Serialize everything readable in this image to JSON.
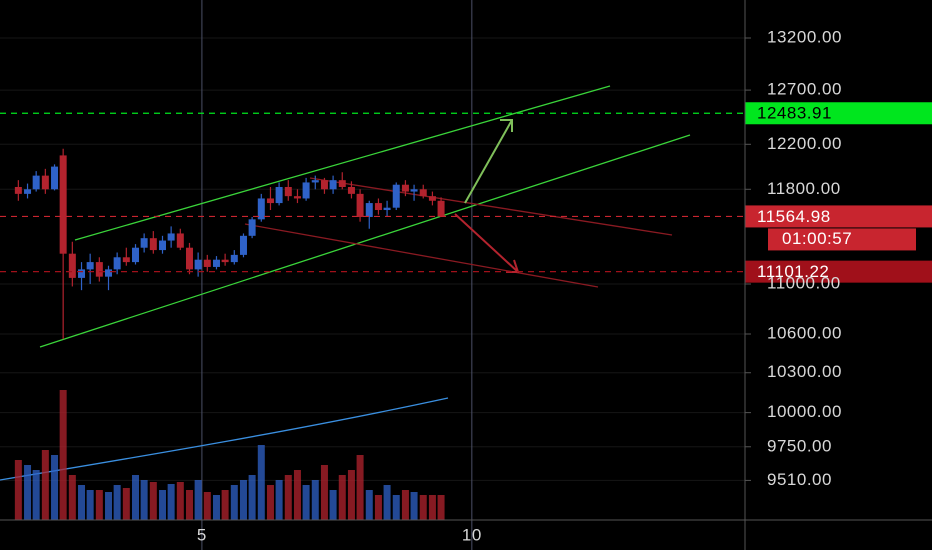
{
  "chart_data": {
    "type": "candlestick",
    "x": [
      1.6,
      1.77,
      1.93,
      2.1,
      2.27,
      2.43,
      2.6,
      2.77,
      2.93,
      3.1,
      3.27,
      3.43,
      3.6,
      3.77,
      3.93,
      4.1,
      4.27,
      4.43,
      4.6,
      4.77,
      4.93,
      5.1,
      5.27,
      5.43,
      5.6,
      5.77,
      5.93,
      6.1,
      6.27,
      6.43,
      6.6,
      6.77,
      6.93,
      7.1,
      7.27,
      7.43,
      7.6,
      7.77,
      7.93,
      8.1,
      8.27,
      8.43,
      8.6,
      8.77,
      8.93,
      9.1,
      9.27,
      9.43
    ],
    "open": [
      11820,
      11760,
      11800,
      11920,
      11800,
      12100,
      11250,
      11050,
      11120,
      11180,
      11060,
      11120,
      11220,
      11180,
      11300,
      11380,
      11280,
      11360,
      11420,
      11300,
      11120,
      11200,
      11140,
      11200,
      11180,
      11240,
      11400,
      11540,
      11720,
      11680,
      11820,
      11740,
      11720,
      11860,
      11880,
      11800,
      11880,
      11820,
      11760,
      11560,
      11680,
      11620,
      11640,
      11840,
      11780,
      11800,
      11740,
      11700
    ],
    "high": [
      11880,
      11850,
      11960,
      11980,
      12020,
      12160,
      11350,
      11180,
      11250,
      11220,
      11150,
      11260,
      11300,
      11330,
      11420,
      11440,
      11400,
      11480,
      11460,
      11340,
      11260,
      11240,
      11230,
      11250,
      11280,
      11420,
      11560,
      11760,
      11820,
      11860,
      11880,
      11800,
      11900,
      11920,
      11900,
      11920,
      11950,
      11870,
      11800,
      11700,
      11720,
      11700,
      11860,
      11880,
      11840,
      11840,
      11780,
      11730
    ],
    "low": [
      11700,
      11720,
      11780,
      11760,
      11790,
      10560,
      10980,
      10950,
      11000,
      11020,
      10950,
      11080,
      11150,
      11160,
      11260,
      11250,
      11250,
      11300,
      11280,
      11080,
      11060,
      11100,
      11120,
      11150,
      11160,
      11220,
      11380,
      11520,
      11620,
      11660,
      11700,
      11680,
      11700,
      11800,
      11760,
      11760,
      11800,
      11720,
      11520,
      11460,
      11580,
      11560,
      11620,
      11740,
      11700,
      11720,
      11660,
      11560
    ],
    "close": [
      11760,
      11800,
      11920,
      11800,
      12000,
      11250,
      11050,
      11120,
      11180,
      11060,
      11120,
      11220,
      11180,
      11300,
      11380,
      11280,
      11360,
      11420,
      11300,
      11120,
      11200,
      11140,
      11200,
      11180,
      11240,
      11400,
      11540,
      11720,
      11680,
      11820,
      11740,
      11720,
      11860,
      11880,
      11800,
      11880,
      11820,
      11760,
      11560,
      11680,
      11620,
      11640,
      11840,
      11780,
      11800,
      11740,
      11700,
      11565
    ],
    "volume": [
      60,
      55,
      50,
      70,
      65,
      130,
      45,
      35,
      30,
      30,
      28,
      35,
      32,
      45,
      40,
      38,
      30,
      36,
      38,
      30,
      40,
      28,
      25,
      30,
      35,
      40,
      45,
      75,
      35,
      40,
      45,
      50,
      35,
      40,
      55,
      30,
      45,
      50,
      65,
      30,
      25,
      35,
      25,
      30,
      28,
      25,
      25,
      25
    ],
    "up_color": "#2f62c8",
    "down_color": "#b3232e",
    "xlim": [
      1.26,
      15.06
    ],
    "xticks": [
      5,
      10
    ],
    "ylim": [
      9235,
      13577
    ],
    "log_scale": true,
    "grid": true,
    "yticks": [
      {
        "value": 13200,
        "label": "13200.00"
      },
      {
        "value": 12700,
        "label": "12700.00"
      },
      {
        "value": 12200,
        "label": "12200.00"
      },
      {
        "value": 11800,
        "label": "11800.00"
      },
      {
        "value": 11000,
        "label": "11000.00"
      },
      {
        "value": 10600,
        "label": "10600.00"
      },
      {
        "value": 10300,
        "label": "10300.00"
      },
      {
        "value": 10000,
        "label": "10000.00"
      },
      {
        "value": 9750,
        "label": "9750.00"
      },
      {
        "value": 9510,
        "label": "9510.00"
      }
    ],
    "levels": [
      {
        "value": 12483.91,
        "color": "#00e61e"
      },
      {
        "value": 11564.98,
        "color": "#c8252f"
      },
      {
        "value": 11101.22,
        "color": "#a0101a"
      }
    ],
    "countdown": "01:00:57"
  }
}
